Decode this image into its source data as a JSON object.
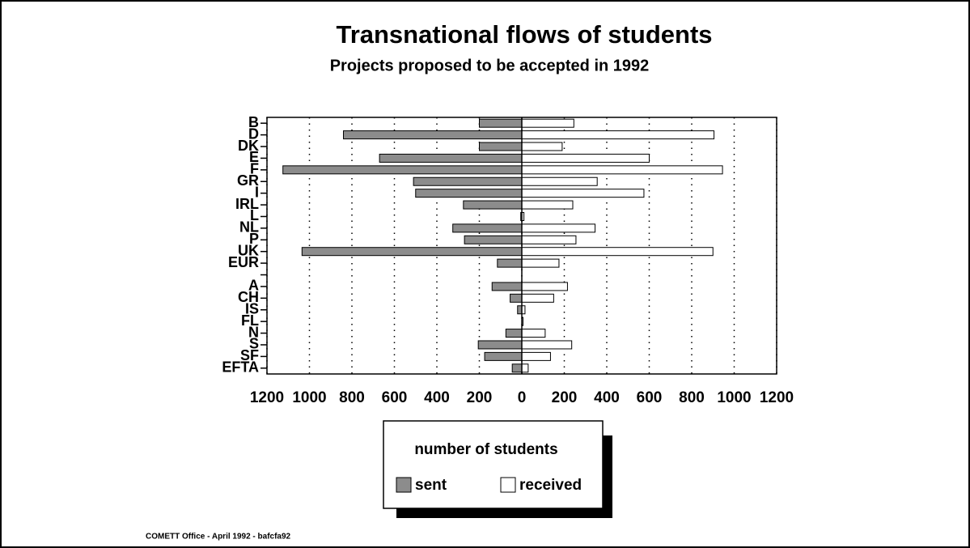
{
  "chart_data": {
    "type": "butterfly_bar",
    "title": "Transnational flows of students",
    "subtitle": "Projects proposed to be accepted in 1992",
    "categories": [
      "B",
      "D",
      "DK",
      "E",
      "F",
      "GR",
      "I",
      "IRL",
      "L",
      "NL",
      "P",
      "UK",
      "EUR",
      null,
      "A",
      "CH",
      "IS",
      "FL",
      "N",
      "S",
      "SF",
      "EFTA"
    ],
    "series": [
      {
        "name": "sent",
        "color": "#8c8c8c",
        "values": [
          -200,
          -840,
          -200,
          -670,
          -1125,
          -510,
          -500,
          -275,
          -5,
          -325,
          -270,
          -1035,
          -115,
          null,
          -140,
          -55,
          -20,
          0,
          -75,
          -205,
          -175,
          -45
        ]
      },
      {
        "name": "received",
        "color": "#ffffff",
        "values": [
          245,
          905,
          190,
          600,
          945,
          355,
          575,
          240,
          10,
          345,
          255,
          900,
          175,
          null,
          215,
          150,
          15,
          0,
          110,
          235,
          135,
          30
        ]
      }
    ],
    "xlim": [
      -1200,
      1200
    ],
    "xticks": [
      {
        "value": -1200,
        "label": "1200"
      },
      {
        "value": -1000,
        "label": "1000"
      },
      {
        "value": -800,
        "label": "800"
      },
      {
        "value": -600,
        "label": "600"
      },
      {
        "value": -400,
        "label": "400"
      },
      {
        "value": -200,
        "label": "200"
      },
      0,
      200,
      400,
      600,
      800,
      1000,
      1200
    ],
    "grid": true,
    "legend_title": "number of students",
    "footer": "COMETT Office - April 1992 - bafcfa92"
  }
}
